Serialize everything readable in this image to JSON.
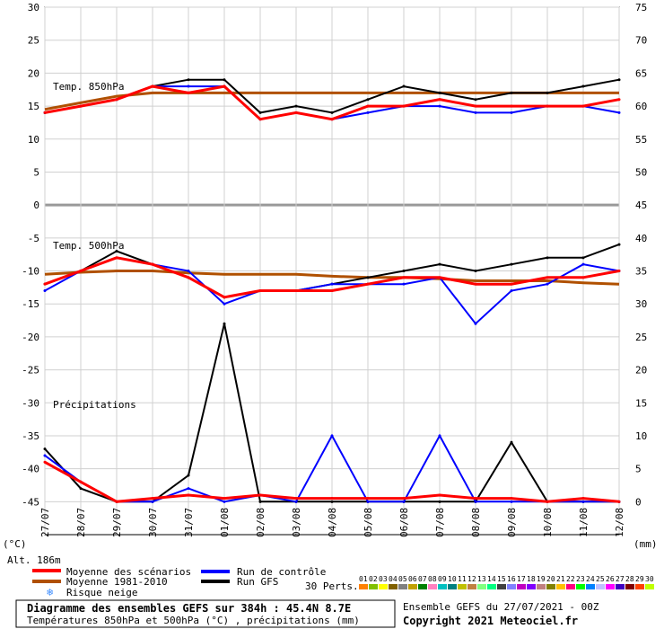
{
  "chart_data": {
    "type": "line",
    "title": "Diagramme des ensembles GEFS sur 384h : 45.4N 8.7E",
    "subtitle": "Températures 850hPa et 500hPa (°C) , précipitations (mm)",
    "left_axis": {
      "unit": "(°C)",
      "ticks": [
        30,
        25,
        20,
        15,
        10,
        5,
        0,
        -5,
        -10,
        -15,
        -20,
        -25,
        -30,
        -35,
        -40,
        -45
      ],
      "range": [
        -50,
        30
      ]
    },
    "right_axis": {
      "unit": "(mm)",
      "ticks": [
        75,
        70,
        65,
        60,
        55,
        50,
        45,
        40,
        35,
        30,
        25,
        20,
        15,
        10,
        5,
        0
      ],
      "range": [
        -5,
        75
      ]
    },
    "x_ticks": [
      "27/07",
      "28/07",
      "29/07",
      "30/07",
      "31/07",
      "01/08",
      "02/08",
      "03/08",
      "04/08",
      "05/08",
      "06/08",
      "07/08",
      "08/08",
      "09/08",
      "10/08",
      "11/08",
      "12/08"
    ],
    "panel_labels": {
      "t850": "Temp. 850hPa",
      "t500": "Temp. 500hPa",
      "precip": "Précipitations"
    },
    "altitude": "Alt. 186m",
    "climatology_850": [
      14.5,
      15.5,
      16.5,
      17.0,
      17.0,
      17.0,
      17.0,
      17.0,
      17.0,
      17.0,
      17.0,
      17.0,
      17.0,
      17.0,
      17.0,
      17.0,
      17.0
    ],
    "climatology_500": [
      -10.5,
      -10.2,
      -10.0,
      -10.0,
      -10.3,
      -10.5,
      -10.5,
      -10.5,
      -10.8,
      -11.0,
      -11.0,
      -11.2,
      -11.5,
      -11.5,
      -11.5,
      -11.8,
      -12.0
    ],
    "series": [
      {
        "name": "Moyenne des scénarios",
        "color": "#ff0000",
        "t850": [
          14,
          15,
          16,
          18,
          17,
          18,
          13,
          14,
          13,
          15,
          15,
          16,
          15,
          15,
          15,
          15,
          16
        ],
        "t500": [
          -12,
          -10,
          -8,
          -9,
          -11,
          -14,
          -13,
          -13,
          -13,
          -12,
          -11,
          -11,
          -12,
          -12,
          -11,
          -11,
          -10
        ],
        "precip": [
          6,
          3,
          0,
          0.5,
          1,
          0.5,
          1,
          0.5,
          0.5,
          0.5,
          0.5,
          1,
          0.5,
          0.5,
          0,
          0.5,
          0
        ]
      },
      {
        "name": "Run de contrôle",
        "color": "#0000ff",
        "t850": [
          14,
          15,
          16,
          18,
          18,
          18,
          13,
          14,
          13,
          14,
          15,
          15,
          14,
          14,
          15,
          15,
          14
        ],
        "t500": [
          -13,
          -10,
          -8,
          -9,
          -10,
          -15,
          -13,
          -13,
          -12,
          -12,
          -12,
          -11,
          -18,
          -13,
          -12,
          -9,
          -10
        ],
        "precip": [
          7,
          3,
          0,
          0,
          2,
          0,
          1,
          0,
          10,
          0,
          0,
          10,
          0,
          0,
          0,
          0,
          0
        ]
      },
      {
        "name": "Run GFS",
        "color": "#000000",
        "t850": [
          14,
          15,
          16,
          18,
          19,
          19,
          14,
          15,
          14,
          16,
          18,
          17,
          16,
          17,
          17,
          18,
          19
        ],
        "t500": [
          -12,
          -10,
          -7,
          -9,
          -11,
          -14,
          -13,
          -13,
          -12,
          -11,
          -10,
          -9,
          -10,
          -9,
          -8,
          -8,
          -6
        ],
        "precip": [
          8,
          2,
          0,
          0,
          4,
          27,
          0,
          0,
          0,
          0,
          0,
          0,
          0,
          9,
          0,
          0,
          0
        ]
      }
    ]
  },
  "legend": {
    "mean_label": "Moyenne des scénarios",
    "clim_label": "Moyenne 1981-2010",
    "snow_label": "Risque neige",
    "control_label": "Run de contrôle",
    "gfs_label": "Run GFS",
    "perts_label": "30 Perts.",
    "pert_numbers": [
      "01",
      "02",
      "03",
      "04",
      "05",
      "06",
      "07",
      "08",
      "09",
      "10",
      "11",
      "12",
      "13",
      "14",
      "15",
      "16",
      "17",
      "18",
      "19",
      "20",
      "21",
      "22",
      "23",
      "24",
      "25",
      "26",
      "27",
      "28",
      "29",
      "30"
    ],
    "pert_colors": [
      "#ff8000",
      "#80c000",
      "#ffff00",
      "#806000",
      "#808080",
      "#c0a000",
      "#008000",
      "#ff80c0",
      "#00c0c0",
      "#008080",
      "#c0c000",
      "#c08040",
      "#80ff80",
      "#00ff80",
      "#404040",
      "#8080ff",
      "#c000c0",
      "#8000ff",
      "#c08080",
      "#808000",
      "#ffc000",
      "#ff0080",
      "#00ff00",
      "#0080ff",
      "#c0c0ff",
      "#ff00ff",
      "#4000c0",
      "#800000",
      "#ff4000",
      "#c0ff00"
    ],
    "colors": {
      "mean": "#ff0000",
      "clim": "#b05000",
      "control": "#0000ff",
      "gfs": "#000000",
      "snow": "#3c8cff"
    }
  },
  "footer": {
    "title": "Diagramme des ensembles GEFS sur 384h : 45.4N 8.7E",
    "subtitle": "Températures 850hPa et 500hPa (°C) , précipitations (mm)",
    "run_info": "Ensemble GEFS du 27/07/2021 - 00Z",
    "copyright": "Copyright 2021 Meteociel.fr"
  }
}
